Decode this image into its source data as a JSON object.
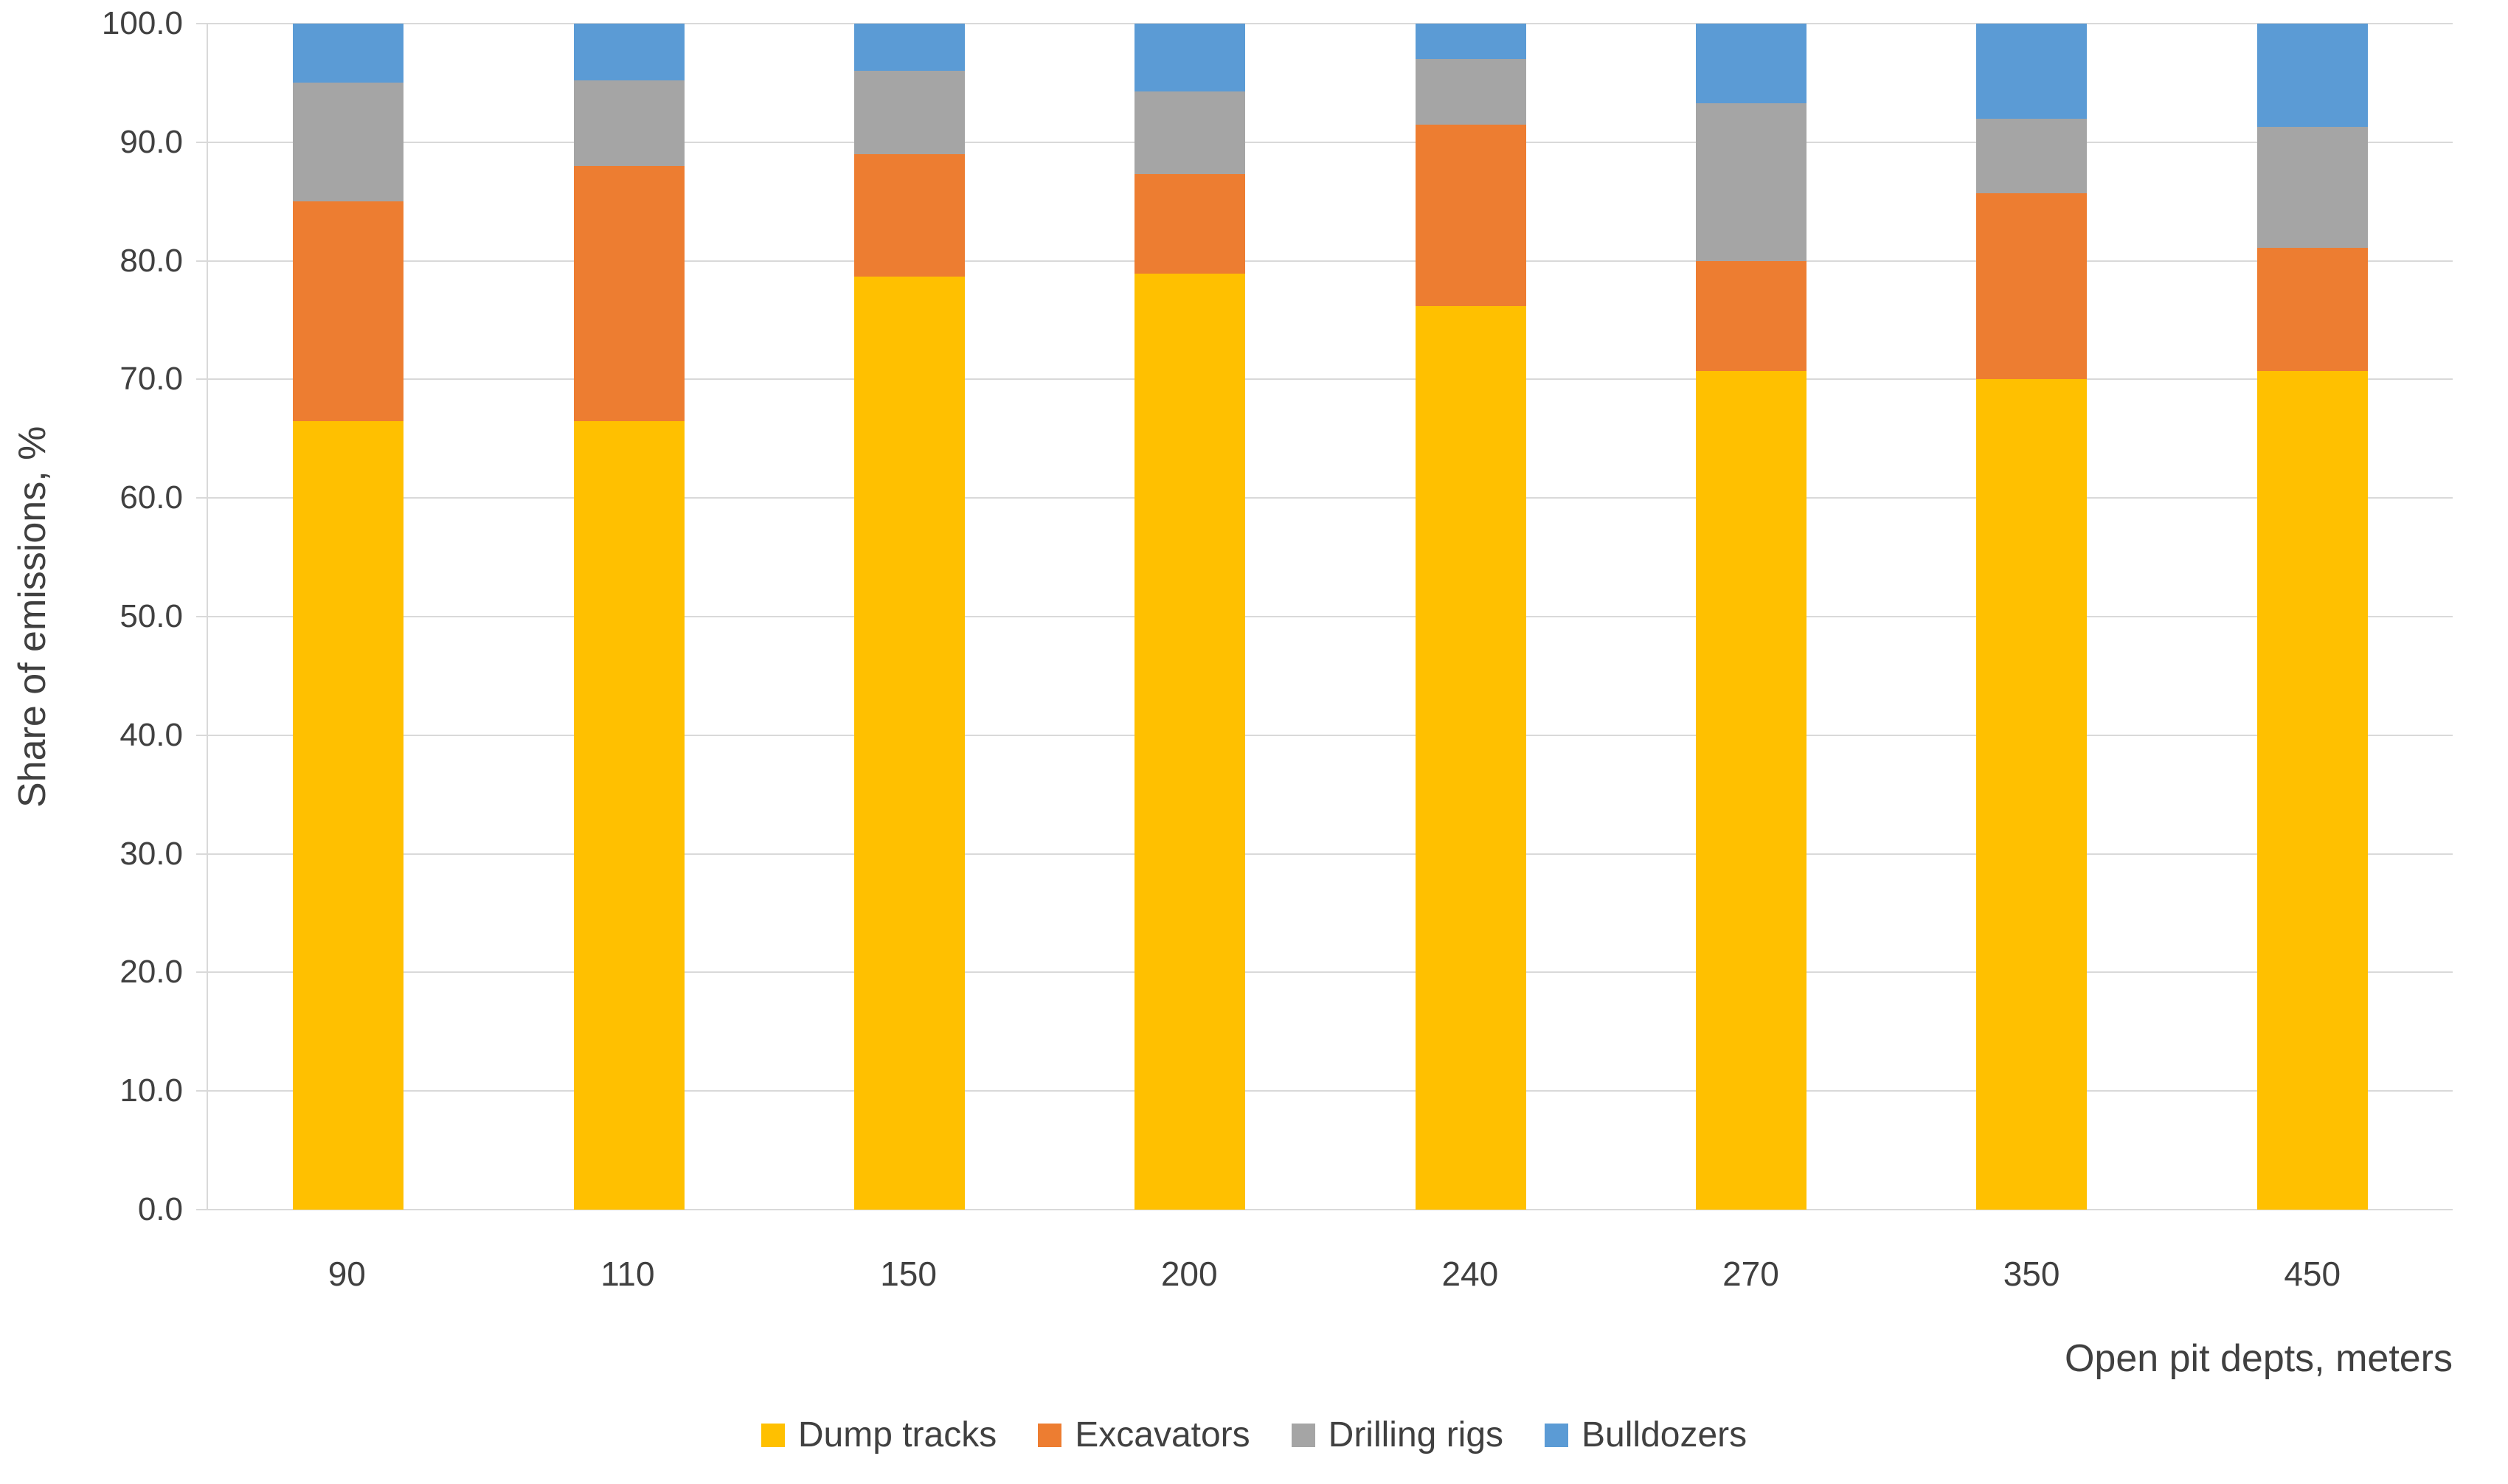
{
  "chart_data": {
    "type": "bar",
    "stacked": true,
    "xlabel": "Open pit depts, meters",
    "ylabel": "Share of emissions, %",
    "categories": [
      "90",
      "110",
      "150",
      "200",
      "240",
      "270",
      "350",
      "450"
    ],
    "series": [
      {
        "name": "Dump tracks",
        "color": "#FFC000",
        "values": [
          66.5,
          66.5,
          78.7,
          78.9,
          76.2,
          70.7,
          70.0,
          70.7
        ]
      },
      {
        "name": "Excavators",
        "color": "#ED7D31",
        "values": [
          18.5,
          21.5,
          10.3,
          8.4,
          15.3,
          9.3,
          15.7,
          10.4
        ]
      },
      {
        "name": "Drilling rigs",
        "color": "#A5A5A5",
        "values": [
          10.0,
          7.2,
          7.0,
          7.0,
          5.5,
          13.3,
          6.3,
          10.2
        ]
      },
      {
        "name": "Bulldozers",
        "color": "#5B9BD5",
        "values": [
          5.0,
          4.8,
          4.0,
          5.7,
          3.0,
          6.7,
          8.0,
          8.7
        ]
      }
    ],
    "ylim": [
      0,
      100
    ],
    "ytick_step": 10,
    "ytick_labels": [
      "0.0",
      "10.0",
      "20.0",
      "30.0",
      "40.0",
      "50.0",
      "60.0",
      "70.0",
      "80.0",
      "90.0",
      "100.0"
    ],
    "grid": true,
    "gridline_color": "#D9D9D9",
    "text_color": "#404040",
    "legend_position": "bottom"
  }
}
